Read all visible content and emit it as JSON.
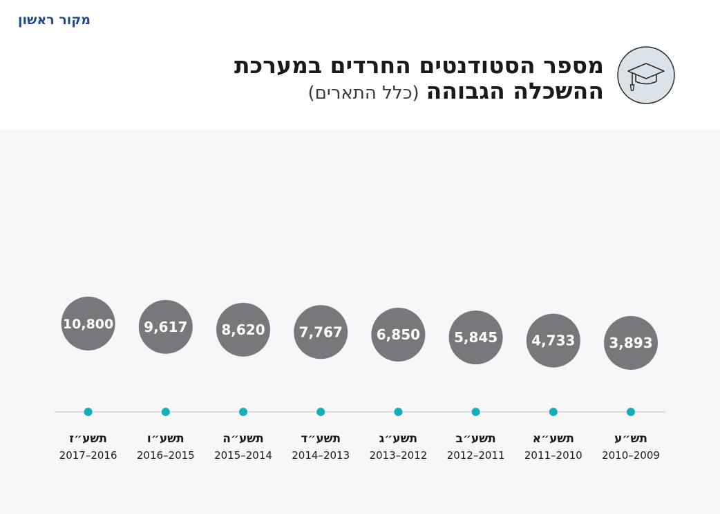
{
  "brand": {
    "name": "מקור ראשון"
  },
  "header": {
    "title_line1": "מספר הסטודנטים החרדים במערכת",
    "title_line2": "ההשכלה הגבוהה",
    "subtitle": "(כלל התארים)",
    "icon": "graduation-cap-icon"
  },
  "colors": {
    "bubble": "#77787b",
    "bubble_text": "#ffffff",
    "dot": "#13aeb7",
    "axis_line": "#c9c9c9",
    "label": "#1a1a1a",
    "panel": "#f7f7f7"
  },
  "chart_data": {
    "type": "bubble-timeline",
    "title": "מספר הסטודנטים החרדים במערכת ההשכלה הגבוהה (כלל התארים)",
    "categories": [
      "תש״ע",
      "תשע״א",
      "תשע״ב",
      "תשע״ג",
      "תשע״ד",
      "תשע״ה",
      "תשע״ו",
      "תשע״ז"
    ],
    "years": [
      "2010–2009",
      "2011–2010",
      "2012–2011",
      "2013–2012",
      "2014–2013",
      "2015–2014",
      "2016–2015",
      "2017–2016"
    ],
    "values": [
      3893,
      4733,
      5845,
      6850,
      7767,
      8620,
      9617,
      10800
    ],
    "value_labels": [
      "3,893",
      "4,733",
      "5,845",
      "6,850",
      "7,767",
      "8,620",
      "9,617",
      "10,800"
    ],
    "direction": "right-to-left"
  }
}
